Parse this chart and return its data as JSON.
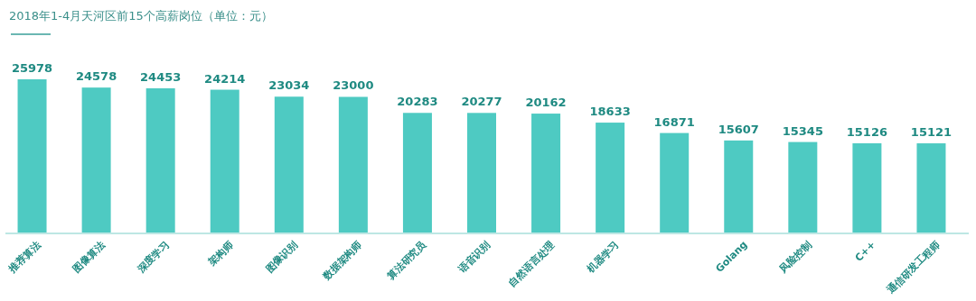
{
  "chart_data": {
    "type": "bar",
    "title": "2018年1-4月天河区前15个高薪岗位（单位：元）",
    "categories": [
      "推荐算法",
      "图像算法",
      "深度学习",
      "架构师",
      "图像识别",
      "数据架构师",
      "算法研究员",
      "语音识别",
      "自然语言处理",
      "机器学习",
      null,
      "Golang",
      "风险控制",
      "C++",
      "通信研发工程师"
    ],
    "values": [
      25978,
      24578,
      24453,
      24214,
      23034,
      23000,
      20283,
      20277,
      20162,
      18633,
      16871,
      15607,
      15345,
      15126,
      15121
    ],
    "color": "#4ecac2",
    "data_labels": true
  }
}
